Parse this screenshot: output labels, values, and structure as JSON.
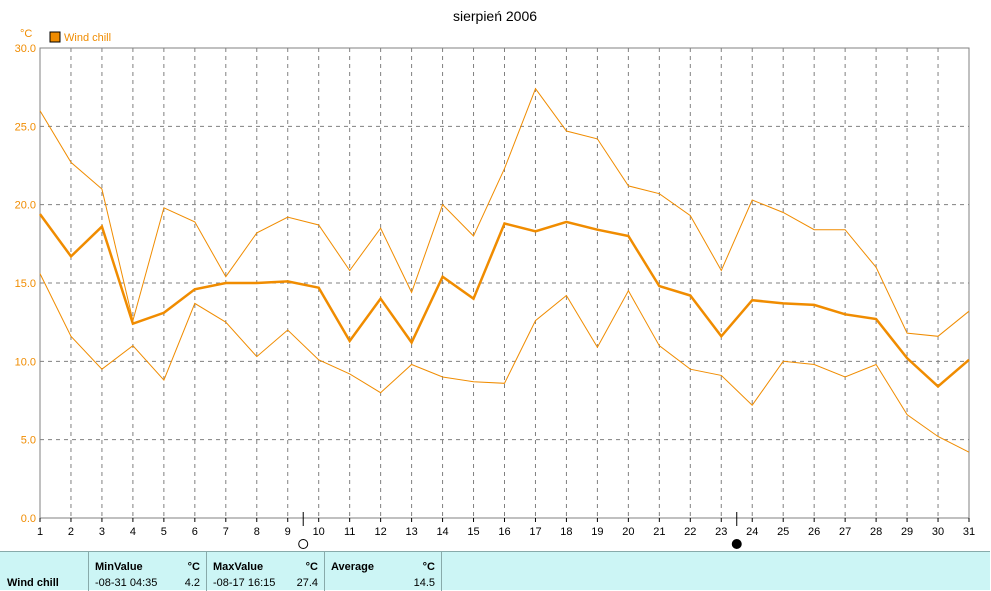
{
  "chart_data": {
    "type": "line",
    "title": "sierpień 2006",
    "ylabel": "°C",
    "ylim": [
      0,
      30
    ],
    "yticks": [
      "0.0",
      "5.0",
      "10.0",
      "15.0",
      "20.0",
      "25.0",
      "30.0"
    ],
    "x": [
      1,
      2,
      3,
      4,
      5,
      6,
      7,
      8,
      9,
      10,
      11,
      12,
      13,
      14,
      15,
      16,
      17,
      18,
      19,
      20,
      21,
      22,
      23,
      24,
      25,
      26,
      27,
      28,
      29,
      30,
      31
    ],
    "grid": true,
    "legend": "top-left",
    "series": [
      {
        "name": "Wind chill",
        "role": "average",
        "color": "#f08c00",
        "values": [
          19.4,
          16.7,
          18.6,
          12.4,
          13.1,
          14.6,
          15.0,
          15.0,
          15.1,
          14.7,
          11.3,
          14.0,
          11.2,
          15.4,
          14.0,
          18.8,
          18.3,
          18.9,
          18.4,
          18.0,
          14.8,
          14.2,
          11.6,
          13.9,
          13.7,
          13.6,
          13.0,
          12.7,
          10.2,
          8.4,
          10.1
        ]
      },
      {
        "role": "max",
        "color": "#f08c00",
        "values": [
          26.0,
          22.7,
          21.0,
          12.6,
          19.8,
          18.9,
          15.4,
          18.2,
          19.2,
          18.7,
          15.8,
          18.5,
          14.4,
          20.0,
          18.0,
          22.3,
          27.4,
          24.7,
          24.2,
          21.2,
          20.7,
          19.3,
          15.8,
          20.3,
          19.5,
          18.4,
          18.4,
          16.0,
          11.8,
          11.6,
          13.2
        ]
      },
      {
        "role": "min",
        "color": "#f08c00",
        "values": [
          15.6,
          11.6,
          9.5,
          11.0,
          8.8,
          13.7,
          12.5,
          10.3,
          12.0,
          10.1,
          9.2,
          8.0,
          9.8,
          9.0,
          8.7,
          8.6,
          12.6,
          14.2,
          10.9,
          14.5,
          11.0,
          9.5,
          9.1,
          7.2,
          10.0,
          9.8,
          9.0,
          9.8,
          6.6,
          5.2,
          4.2
        ]
      }
    ],
    "moon_markers": [
      {
        "x": 9.5,
        "symbol": "○"
      },
      {
        "x": 23.5,
        "symbol": "●"
      }
    ]
  },
  "stats": {
    "row_label": "Wind chill",
    "min": {
      "header": "MinValue",
      "unit": "°C",
      "when": "-08-31  04:35",
      "value": "4.2"
    },
    "max": {
      "header": "MaxValue",
      "unit": "°C",
      "when": "-08-17  16:15",
      "value": "27.4"
    },
    "avg": {
      "header": "Average",
      "unit": "°C",
      "value": "14.5"
    }
  }
}
